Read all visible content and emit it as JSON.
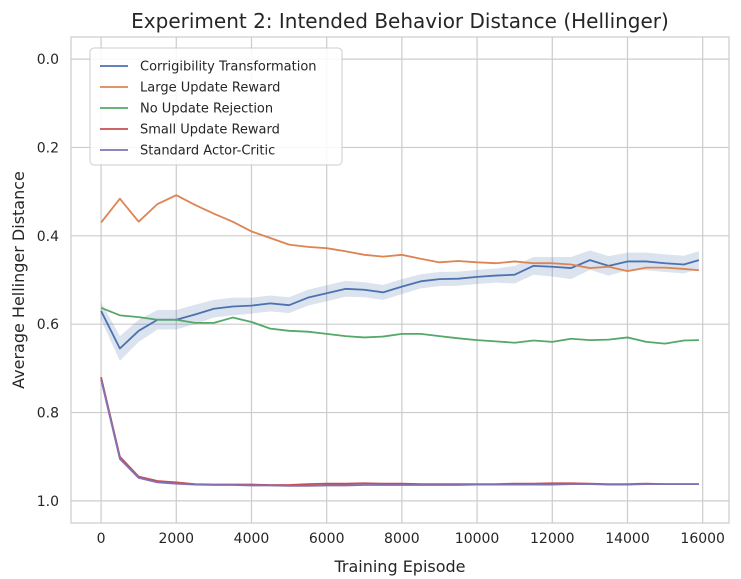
{
  "chart_data": {
    "type": "line",
    "title": "Experiment 2: Intended Behavior Distance (Hellinger)",
    "xlabel": "Training Episode",
    "ylabel": "Average Hellinger Distance",
    "xlim": [
      -800,
      16700
    ],
    "ylim": [
      1.05,
      -0.05
    ],
    "y_inverted": true,
    "xticks": [
      0,
      2000,
      4000,
      6000,
      8000,
      10000,
      12000,
      14000,
      16000
    ],
    "xtick_labels": [
      "0",
      "2000",
      "4000",
      "6000",
      "8000",
      "10000",
      "12000",
      "14000",
      "16000"
    ],
    "yticks": [
      0.0,
      0.2,
      0.4,
      0.6,
      0.8,
      1.0
    ],
    "ytick_labels": [
      "0.0",
      "0.2",
      "0.4",
      "0.6",
      "0.8",
      "1.0"
    ],
    "grid": true,
    "legend_position": "upper-left",
    "x": [
      0,
      500,
      1000,
      1500,
      2000,
      2500,
      3000,
      3500,
      4000,
      4500,
      5000,
      5500,
      6000,
      6500,
      7000,
      7500,
      8000,
      8500,
      9000,
      9500,
      10000,
      10500,
      11000,
      11500,
      12000,
      12500,
      13000,
      13500,
      14000,
      14500,
      15000,
      15500,
      15900
    ],
    "series": [
      {
        "name": "Corrigibility Transformation",
        "color": "#4c72b0",
        "values": [
          0.57,
          0.655,
          0.615,
          0.59,
          0.59,
          0.578,
          0.565,
          0.56,
          0.558,
          0.553,
          0.557,
          0.54,
          0.53,
          0.52,
          0.522,
          0.528,
          0.515,
          0.503,
          0.498,
          0.497,
          0.493,
          0.49,
          0.488,
          0.468,
          0.47,
          0.473,
          0.455,
          0.468,
          0.458,
          0.458,
          0.462,
          0.465,
          0.455
        ],
        "band_halfwidth": [
          0.02,
          0.028,
          0.025,
          0.022,
          0.022,
          0.022,
          0.02,
          0.02,
          0.018,
          0.018,
          0.018,
          0.018,
          0.018,
          0.018,
          0.017,
          0.017,
          0.017,
          0.016,
          0.016,
          0.016,
          0.016,
          0.016,
          0.02,
          0.02,
          0.022,
          0.025,
          0.022,
          0.022,
          0.02,
          0.02,
          0.02,
          0.02,
          0.02
        ]
      },
      {
        "name": "Large Update Reward",
        "color": "#dd8452",
        "values": [
          0.37,
          0.316,
          0.368,
          0.328,
          0.308,
          0.33,
          0.35,
          0.368,
          0.39,
          0.405,
          0.42,
          0.425,
          0.428,
          0.435,
          0.443,
          0.447,
          0.443,
          0.452,
          0.46,
          0.457,
          0.46,
          0.462,
          0.458,
          0.462,
          0.462,
          0.465,
          0.473,
          0.47,
          0.48,
          0.472,
          0.472,
          0.475,
          0.478
        ]
      },
      {
        "name": "No Update Rejection",
        "color": "#55a868",
        "values": [
          0.563,
          0.58,
          0.584,
          0.59,
          0.59,
          0.597,
          0.597,
          0.585,
          0.595,
          0.61,
          0.615,
          0.617,
          0.622,
          0.627,
          0.63,
          0.628,
          0.622,
          0.622,
          0.627,
          0.632,
          0.636,
          0.639,
          0.642,
          0.637,
          0.64,
          0.633,
          0.636,
          0.635,
          0.63,
          0.64,
          0.644,
          0.637,
          0.636
        ]
      },
      {
        "name": "Small Update Reward",
        "color": "#c44e52",
        "values": [
          0.72,
          0.9,
          0.945,
          0.955,
          0.958,
          0.962,
          0.963,
          0.963,
          0.963,
          0.964,
          0.964,
          0.962,
          0.961,
          0.961,
          0.96,
          0.961,
          0.961,
          0.962,
          0.962,
          0.962,
          0.962,
          0.962,
          0.961,
          0.961,
          0.96,
          0.96,
          0.961,
          0.962,
          0.962,
          0.961,
          0.962,
          0.962,
          0.962
        ]
      },
      {
        "name": "Standard Actor-Critic",
        "color": "#8172b3",
        "values": [
          0.725,
          0.905,
          0.948,
          0.958,
          0.961,
          0.963,
          0.964,
          0.964,
          0.965,
          0.965,
          0.966,
          0.966,
          0.965,
          0.965,
          0.964,
          0.964,
          0.964,
          0.964,
          0.964,
          0.964,
          0.963,
          0.963,
          0.963,
          0.963,
          0.963,
          0.962,
          0.962,
          0.963,
          0.963,
          0.962,
          0.962,
          0.962,
          0.962
        ]
      }
    ]
  }
}
